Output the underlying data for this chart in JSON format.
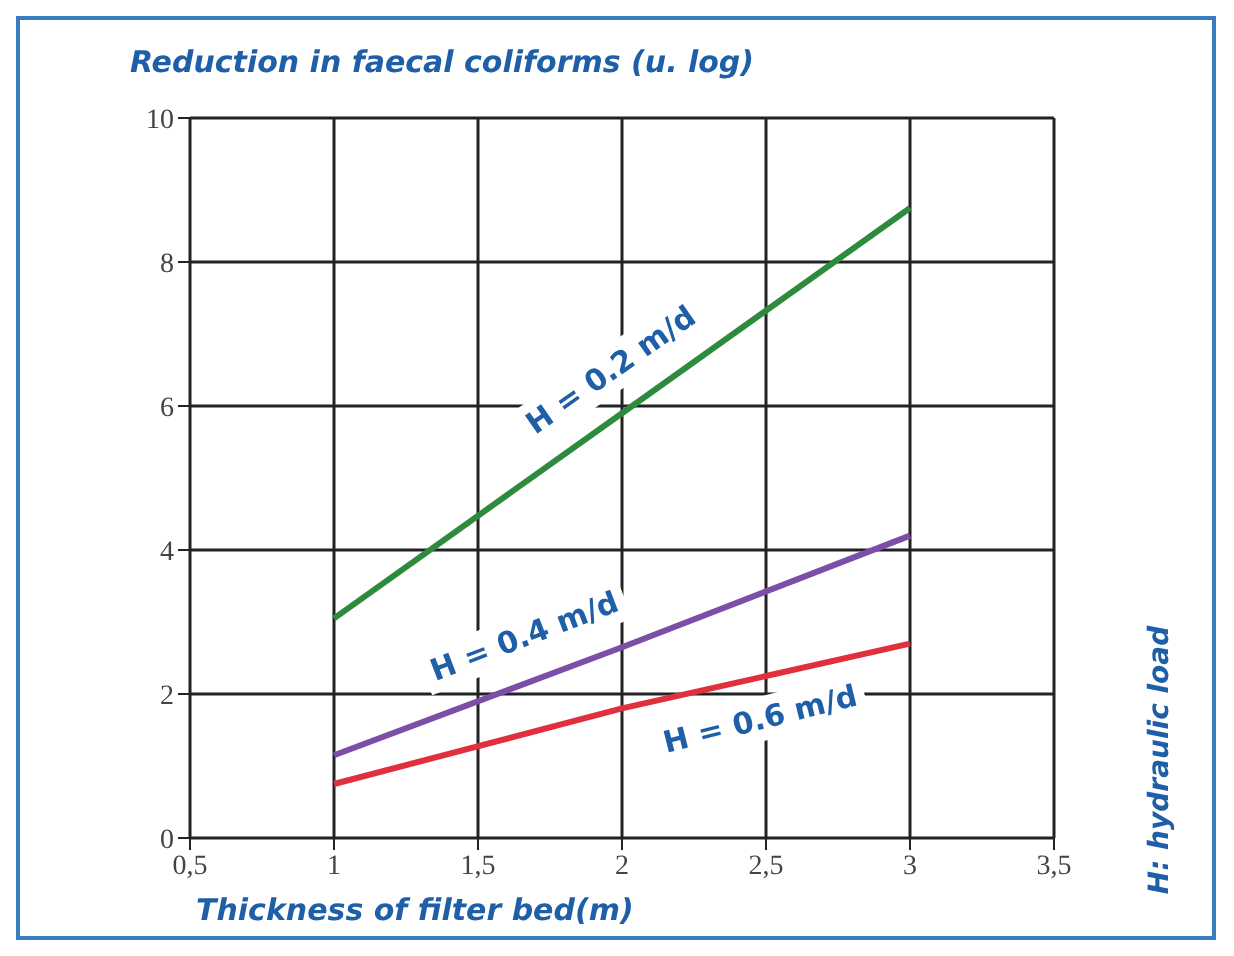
{
  "chart_data": {
    "type": "line",
    "title": "Reduction in faecal coliforms (u. log)",
    "xlabel": "Thickness of filter bed(m)",
    "x": [
      1,
      2,
      3
    ],
    "series": [
      {
        "name": "H = 0.2 m/d",
        "color": "#2e8b3e",
        "values": [
          3.05,
          5.9,
          8.75
        ]
      },
      {
        "name": "H = 0.4 m/d",
        "color": "#7b4fa8",
        "values": [
          1.15,
          2.65,
          4.2
        ]
      },
      {
        "name": "H = 0.6 m/d",
        "color": "#e0303e",
        "values": [
          0.75,
          1.8,
          2.7
        ]
      }
    ],
    "xlim": [
      0.5,
      3.5
    ],
    "xticks": [
      {
        "value": 0.5,
        "label": "0,5"
      },
      1,
      {
        "value": 1.5,
        "label": "1,5"
      },
      2,
      {
        "value": 2.5,
        "label": "2,5"
      },
      3,
      {
        "value": 3.5,
        "label": "3,5"
      }
    ],
    "ylim": [
      0,
      10
    ],
    "yticks": [
      0,
      2,
      4,
      6,
      8,
      10
    ],
    "grid": true,
    "marker": "none",
    "line_style": "solid",
    "legend": false,
    "annotations": [
      "H: hydraulic load"
    ]
  }
}
